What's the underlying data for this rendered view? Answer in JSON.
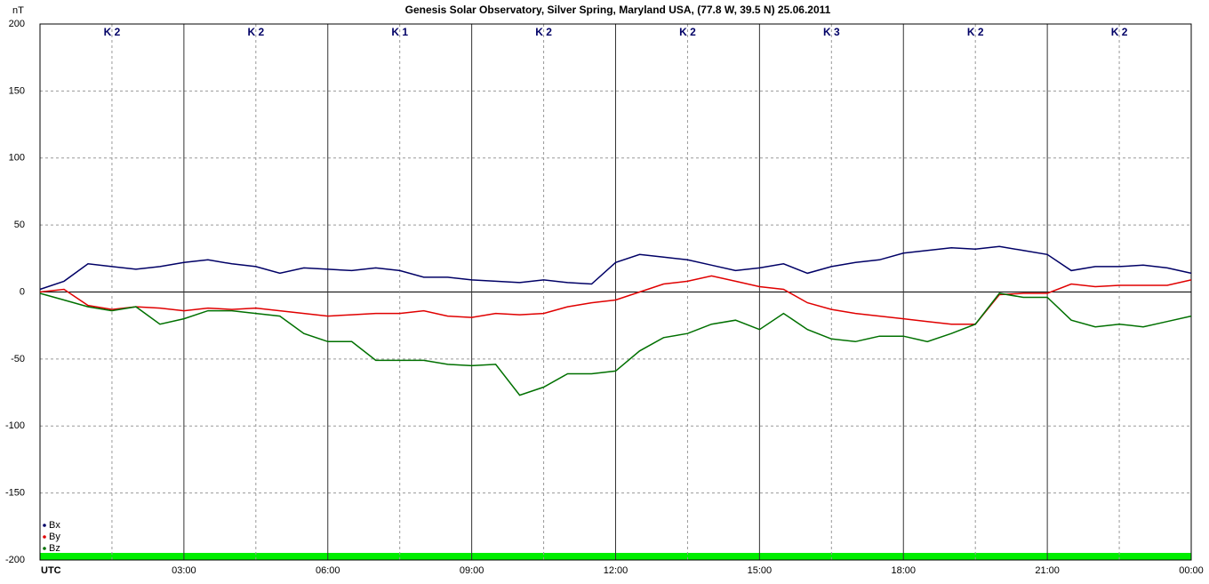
{
  "chart_data": {
    "type": "line",
    "title": "Genesis Solar Observatory, Silver Spring, Maryland USA, (77.8 W, 39.5 N)  25.06.2011",
    "ylabel": "nT",
    "k_indices": [
      "K 2",
      "K 2",
      "K 1",
      "K 2",
      "K 2",
      "K 3",
      "K 2",
      "K 2"
    ],
    "x": [
      0,
      0.5,
      1,
      1.5,
      2,
      2.5,
      3,
      3.5,
      4,
      4.5,
      5,
      5.5,
      6,
      6.5,
      7,
      7.5,
      8,
      8.5,
      9,
      9.5,
      10,
      10.5,
      11,
      11.5,
      12,
      12.5,
      13,
      13.5,
      14,
      14.5,
      15,
      15.5,
      16,
      16.5,
      17,
      17.5,
      18,
      18.5,
      19,
      19.5,
      20,
      20.5,
      21,
      21.5,
      22,
      22.5,
      23,
      23.5,
      24
    ],
    "xlim": [
      0,
      24
    ],
    "xticks": [
      {
        "value": 0,
        "label": "UTC"
      },
      {
        "value": 3,
        "label": "03:00"
      },
      {
        "value": 6,
        "label": "06:00"
      },
      {
        "value": 9,
        "label": "09:00"
      },
      {
        "value": 12,
        "label": "12:00"
      },
      {
        "value": 15,
        "label": "15:00"
      },
      {
        "value": 18,
        "label": "18:00"
      },
      {
        "value": 21,
        "label": "21:00"
      },
      {
        "value": 24,
        "label": "00:00"
      }
    ],
    "ylim": [
      -200,
      200
    ],
    "yticks": [
      -200,
      -150,
      -100,
      -50,
      0,
      50,
      100,
      150,
      200
    ],
    "grid": true,
    "legend": "lower left",
    "series": [
      {
        "name": "Bx",
        "color": "#000066",
        "values": [
          2,
          8,
          21,
          19,
          17,
          19,
          22,
          24,
          21,
          19,
          14,
          18,
          17,
          16,
          18,
          16,
          11,
          11,
          9,
          8,
          7,
          9,
          7,
          6,
          22,
          28,
          26,
          24,
          20,
          16,
          18,
          21,
          14,
          19,
          22,
          24,
          29,
          31,
          33,
          32,
          34,
          31,
          28,
          16,
          19,
          19,
          20,
          18,
          14
        ]
      },
      {
        "name": "By",
        "color": "#e00000",
        "values": [
          0,
          2,
          -10,
          -13,
          -11,
          -12,
          -14,
          -12,
          -13,
          -12,
          -14,
          -16,
          -18,
          -17,
          -16,
          -16,
          -14,
          -18,
          -19,
          -16,
          -17,
          -16,
          -11,
          -8,
          -6,
          0,
          6,
          8,
          12,
          8,
          4,
          2,
          -8,
          -13,
          -16,
          -18,
          -20,
          -22,
          -24,
          -24,
          -2,
          -1,
          -1,
          6,
          4,
          5,
          5,
          5,
          9
        ]
      },
      {
        "name": "Bz",
        "color": "#007000",
        "values": [
          -1,
          -6,
          -11,
          -14,
          -11,
          -24,
          -20,
          -14,
          -14,
          -16,
          -18,
          -31,
          -37,
          -37,
          -51,
          -51,
          -51,
          -54,
          -55,
          -54,
          -77,
          -71,
          -61,
          -61,
          -59,
          -44,
          -34,
          -31,
          -24,
          -21,
          -28,
          -16,
          -28,
          -35,
          -37,
          -33,
          -33,
          -37,
          -31,
          -24,
          -1,
          -4,
          -4,
          -21,
          -26,
          -24,
          -26,
          -22,
          -18
        ]
      }
    ]
  }
}
